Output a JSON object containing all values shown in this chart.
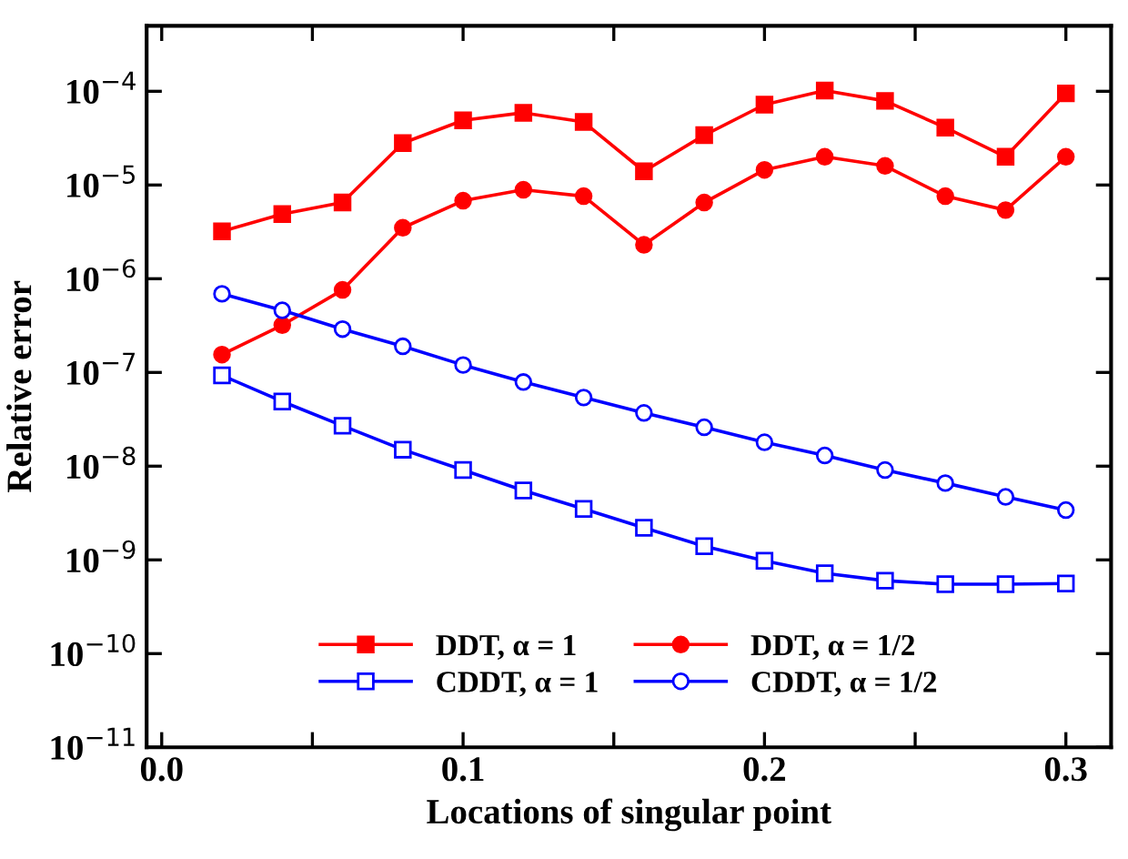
{
  "chart_data": {
    "type": "line",
    "xlabel": "Locations of singular point",
    "ylabel": "Relative error",
    "x": [
      0.02,
      0.04,
      0.06,
      0.08,
      0.1,
      0.12,
      0.14,
      0.16,
      0.18,
      0.2,
      0.22,
      0.24,
      0.26,
      0.28,
      0.3
    ],
    "series": [
      {
        "name": "DDT, α = 1",
        "color": "#ff0000",
        "marker": "square",
        "values": [
          3.2e-06,
          4.9e-06,
          6.5e-06,
          2.8e-05,
          4.9e-05,
          5.9e-05,
          4.7e-05,
          1.4e-05,
          3.4e-05,
          7.2e-05,
          0.000102,
          7.9e-05,
          4.1e-05,
          2e-05,
          9.5e-05
        ]
      },
      {
        "name": "DDT, α = 1/2",
        "color": "#ff0000",
        "marker": "circle",
        "values": [
          1.55e-07,
          3.2e-07,
          7.6e-07,
          3.5e-06,
          6.8e-06,
          8.9e-06,
          7.6e-06,
          2.3e-06,
          6.5e-06,
          1.45e-05,
          2e-05,
          1.6e-05,
          7.6e-06,
          5.4e-06,
          2e-05
        ]
      },
      {
        "name": "CDDT, α = 1",
        "color": "#0000ff",
        "marker": "square",
        "values": [
          9.3e-08,
          4.9e-08,
          2.7e-08,
          1.5e-08,
          9.1e-09,
          5.5e-09,
          3.5e-09,
          2.2e-09,
          1.4e-09,
          9.8e-10,
          7.2e-10,
          6e-10,
          5.5e-10,
          5.5e-10,
          5.6e-10
        ]
      },
      {
        "name": "CDDT, α = 1/2",
        "color": "#0000ff",
        "marker": "circle",
        "values": [
          6.9e-07,
          4.6e-07,
          2.9e-07,
          1.9e-07,
          1.2e-07,
          7.9e-08,
          5.4e-08,
          3.7e-08,
          2.6e-08,
          1.8e-08,
          1.3e-08,
          9.1e-09,
          6.6e-09,
          4.7e-09,
          3.4e-09
        ]
      }
    ],
    "log": "y",
    "xlim": [
      -0.005,
      0.315
    ],
    "ylim": [
      1e-11,
      0.0005
    ],
    "xticks": [
      {
        "value": 0.0,
        "label": "0.0"
      },
      {
        "value": 0.05,
        "label": null
      },
      {
        "value": 0.1,
        "label": "0.1"
      },
      {
        "value": 0.15,
        "label": null
      },
      {
        "value": 0.2,
        "label": "0.2"
      },
      {
        "value": 0.25,
        "label": null
      },
      {
        "value": 0.3,
        "label": "0.3"
      }
    ],
    "yticks": [
      {
        "value": 0.0001,
        "label": "10$^{−4}$"
      },
      {
        "value": 1e-05,
        "label": "10$^{−5}$"
      },
      {
        "value": 1e-06,
        "label": "10$^{−6}$"
      },
      {
        "value": 1e-07,
        "label": "10$^{−7}$"
      },
      {
        "value": 1e-08,
        "label": "10$^{−8}$"
      },
      {
        "value": 1e-09,
        "label": "10$^{−9}$"
      },
      {
        "value": 1e-10,
        "label": "10$^{−10}$"
      },
      {
        "value": 1e-11,
        "label": "10$^{−11}$"
      }
    ],
    "grid": false,
    "legend": "bottom",
    "line_style": "solid"
  }
}
